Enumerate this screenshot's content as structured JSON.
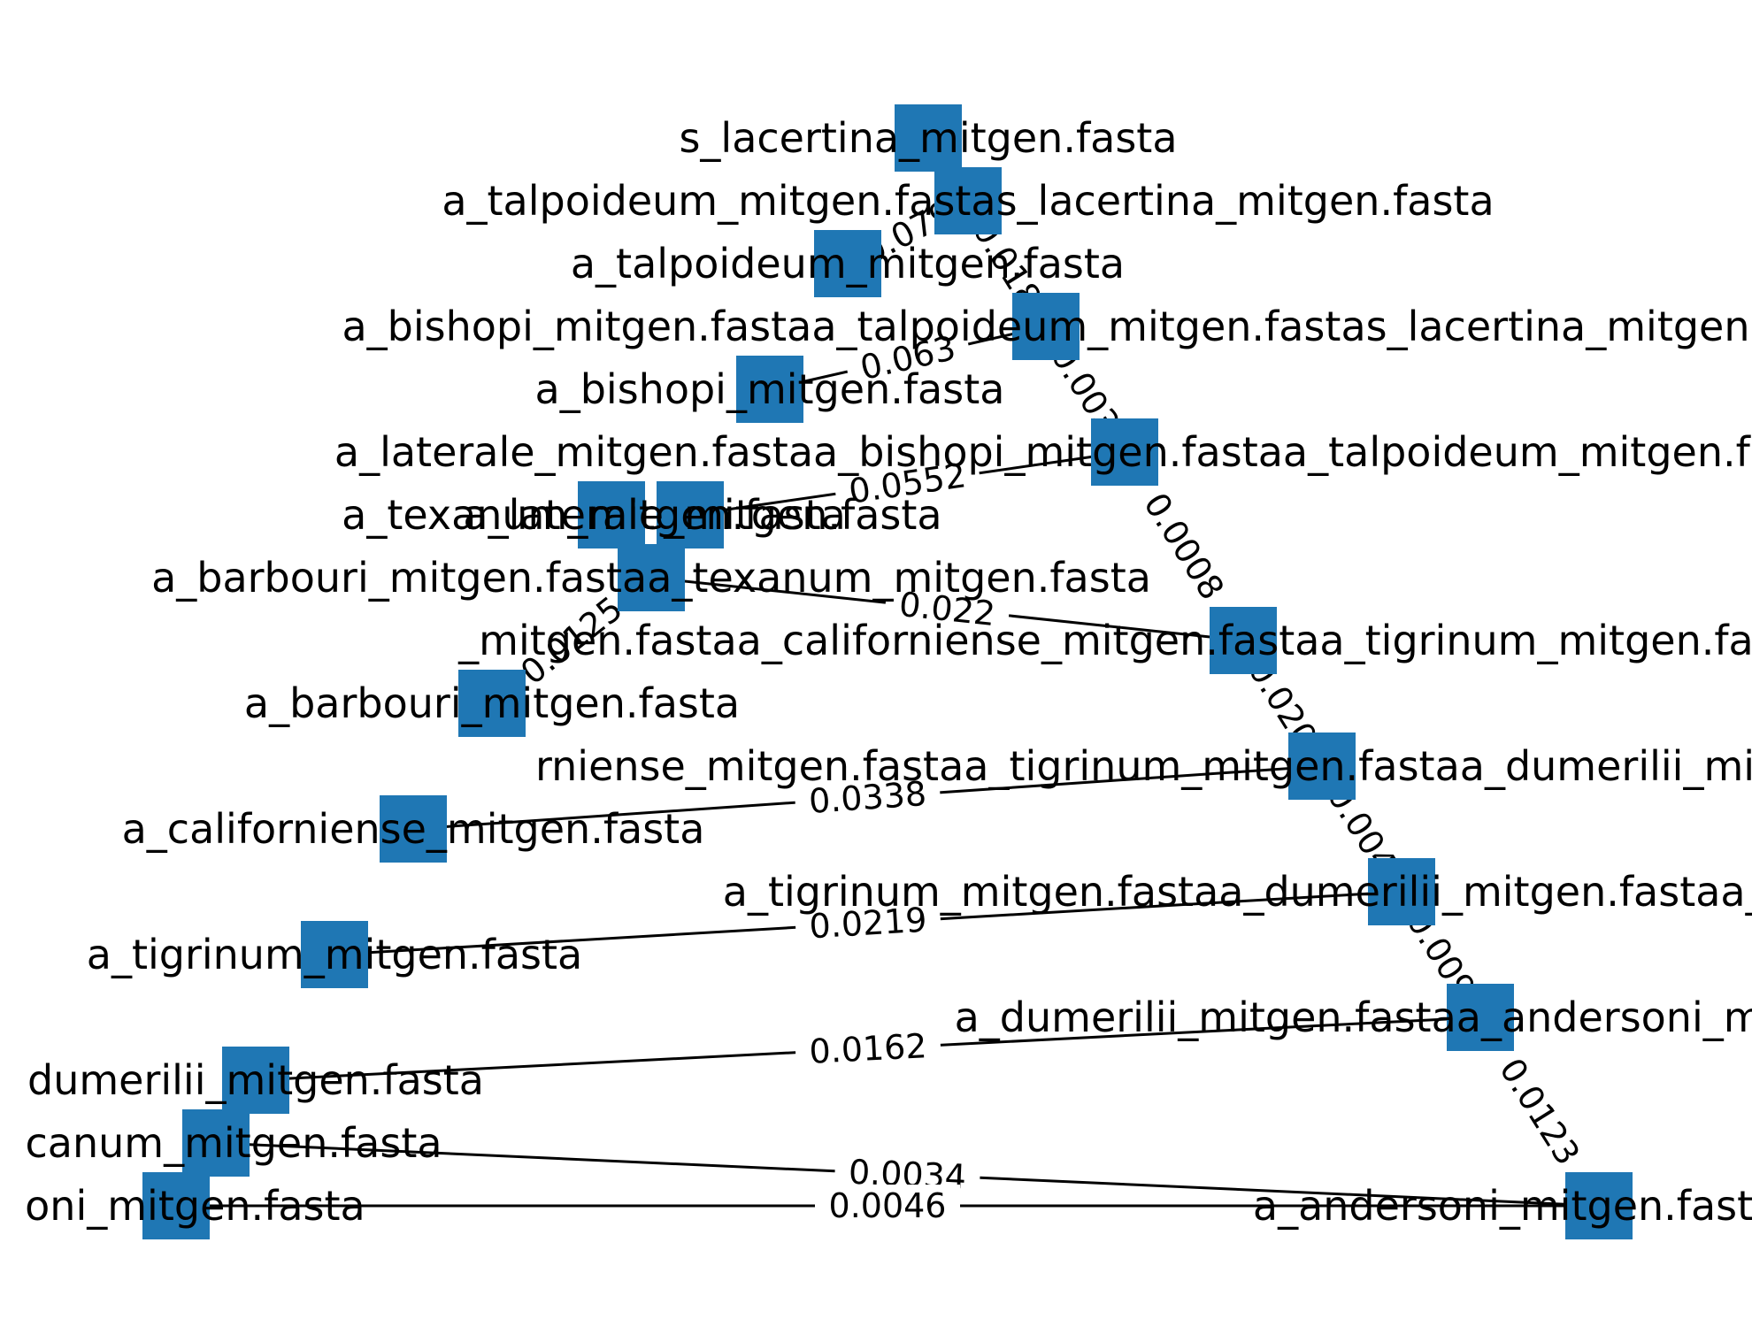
{
  "diagram": {
    "type": "phylogenetic-tree-graph",
    "colors": {
      "node": "#1f77b4",
      "edge": "#000000",
      "label": "#000000",
      "background": "#ffffff"
    },
    "nodes": [
      {
        "id": "n1",
        "label": "s_lacertina_mitgen.fasta"
      },
      {
        "id": "n2",
        "label": "a_talpoideum_mitgen.fastas_lacertina_mitgen.fasta"
      },
      {
        "id": "n3",
        "label": "a_talpoideum_mitgen.fasta"
      },
      {
        "id": "n4",
        "label": "a_bishopi_mitgen.fastaa_talpoideum_mitgen.fastas_lacertina_mitgen"
      },
      {
        "id": "n5",
        "label": "a_bishopi_mitgen.fasta"
      },
      {
        "id": "n6",
        "label": "a_laterale_mitgen.fastaa_bishopi_mitgen.fastaa_talpoideum_mitgen.fastas_la"
      },
      {
        "id": "n7",
        "label": "a_texanum_mitgen.fasta"
      },
      {
        "id": "n8",
        "label": "a_laterale_mitgen.fasta"
      },
      {
        "id": "n9",
        "label": "a_barbouri_mitgen.fastaa_texanum_mitgen.fasta"
      },
      {
        "id": "n10",
        "label": "_mitgen.fastaa_californiense_mitgen.fastaa_tigrinum_mitgen.fastaa_dumerili"
      },
      {
        "id": "n11",
        "label": "a_barbouri_mitgen.fasta"
      },
      {
        "id": "n12",
        "label": "rniense_mitgen.fastaa_tigrinum_mitgen.fastaa_dumerilii_mitgen.fastaa_ande"
      },
      {
        "id": "n13",
        "label": "a_californiense_mitgen.fasta"
      },
      {
        "id": "n14",
        "label": "a_tigrinum_mitgen.fastaa_dumerilii_mitgen.fastaa_andersoni_mitg"
      },
      {
        "id": "n15",
        "label": "a_tigrinum_mitgen.fasta"
      },
      {
        "id": "n16",
        "label": "a_dumerilii_mitgen.fastaa_andersoni_mitgen.fastaa"
      },
      {
        "id": "n17",
        "label": "dumerilii_mitgen.fasta"
      },
      {
        "id": "n18",
        "label": "xicanum_mitgen.fasta"
      },
      {
        "id": "n19",
        "label": "rsoni_mitgen.fasta"
      },
      {
        "id": "n20",
        "label": "a_andersoni_mitgen.fastaa_mexic"
      }
    ],
    "edges": [
      {
        "from": "n2",
        "to": "n1",
        "label": ""
      },
      {
        "from": "n2",
        "to": "n3",
        "label": "0.079"
      },
      {
        "from": "n2",
        "to": "n4",
        "label": "0.018"
      },
      {
        "from": "n4",
        "to": "n5",
        "label": "0.063"
      },
      {
        "from": "n4",
        "to": "n6",
        "label": "0.003"
      },
      {
        "from": "n6",
        "to": "n8",
        "label": "0.0552"
      },
      {
        "from": "n6",
        "to": "n10",
        "label": "0.0008"
      },
      {
        "from": "n9",
        "to": "n7",
        "label": ""
      },
      {
        "from": "n9",
        "to": "n11",
        "label": "0.0125"
      },
      {
        "from": "n10",
        "to": "n9",
        "label": "0.022"
      },
      {
        "from": "n10",
        "to": "n12",
        "label": "0.020"
      },
      {
        "from": "n12",
        "to": "n13",
        "label": "0.0338"
      },
      {
        "from": "n12",
        "to": "n14",
        "label": "0.004"
      },
      {
        "from": "n14",
        "to": "n15",
        "label": "0.0219"
      },
      {
        "from": "n14",
        "to": "n16",
        "label": "0.009"
      },
      {
        "from": "n16",
        "to": "n17",
        "label": "0.0162"
      },
      {
        "from": "n16",
        "to": "n20",
        "label": "0.0123"
      },
      {
        "from": "n20",
        "to": "n18",
        "label": "0.0034"
      },
      {
        "from": "n20",
        "to": "n19",
        "label": "0.0046"
      }
    ]
  }
}
